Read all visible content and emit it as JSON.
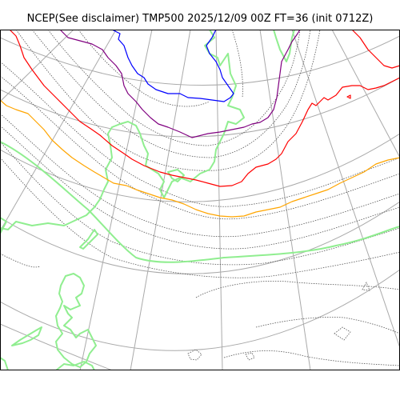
{
  "map": {
    "title": "NCEP(See disclaimer) TMP500 2025/12/09 00Z FT=36 (init 0712Z)",
    "colors": {
      "coastline": "#90ee90",
      "graticule": "#aaaaaa",
      "contour": "#555555",
      "isotherm_cold": "#0000ff",
      "isotherm_purple": "#800080",
      "isotherm_red": "#ff0000",
      "isotherm_orange": "#ffa500",
      "frame": "#000000"
    }
  }
}
